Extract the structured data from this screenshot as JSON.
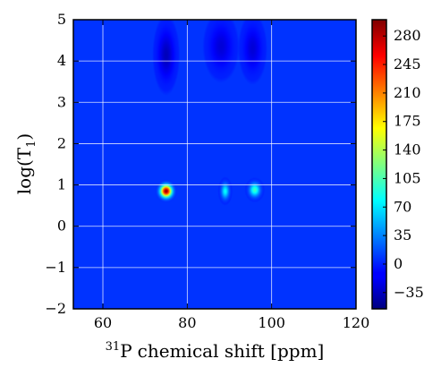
{
  "chart_data": {
    "type": "heatmap",
    "title": "",
    "xlabel": "chemical shift [ppm]",
    "xlabel_superscript": "31",
    "xlabel_element": "P",
    "ylabel": "log(T",
    "ylabel_subscript": "1",
    "ylabel_close": ")",
    "xlim": [
      53,
      120
    ],
    "ylim": [
      -2,
      5
    ],
    "x_ticks": [
      60,
      80,
      100,
      120
    ],
    "y_ticks": [
      -2,
      -1,
      0,
      1,
      2,
      3,
      4,
      5
    ],
    "grid": true,
    "background_value": 0,
    "peaks": [
      {
        "x": 75.0,
        "y": 0.85,
        "intensity": 295,
        "sx": 1.2,
        "sy": 0.13
      },
      {
        "x": 89.0,
        "y": 0.85,
        "intensity": 80,
        "sx": 0.8,
        "sy": 0.16
      },
      {
        "x": 96.0,
        "y": 0.88,
        "intensity": 100,
        "sx": 1.1,
        "sy": 0.14
      },
      {
        "x": 75.0,
        "y": 4.15,
        "intensity": -35,
        "sx": 1.5,
        "sy": 0.45
      },
      {
        "x": 88.0,
        "y": 4.35,
        "intensity": -25,
        "sx": 2.0,
        "sy": 0.4
      },
      {
        "x": 95.5,
        "y": 4.3,
        "intensity": -25,
        "sx": 1.6,
        "sy": 0.4
      }
    ],
    "colorbar": {
      "colormap": "jet",
      "range": [
        -55,
        300
      ],
      "ticks": [
        -35,
        0,
        35,
        70,
        105,
        140,
        175,
        210,
        245,
        280
      ]
    }
  }
}
